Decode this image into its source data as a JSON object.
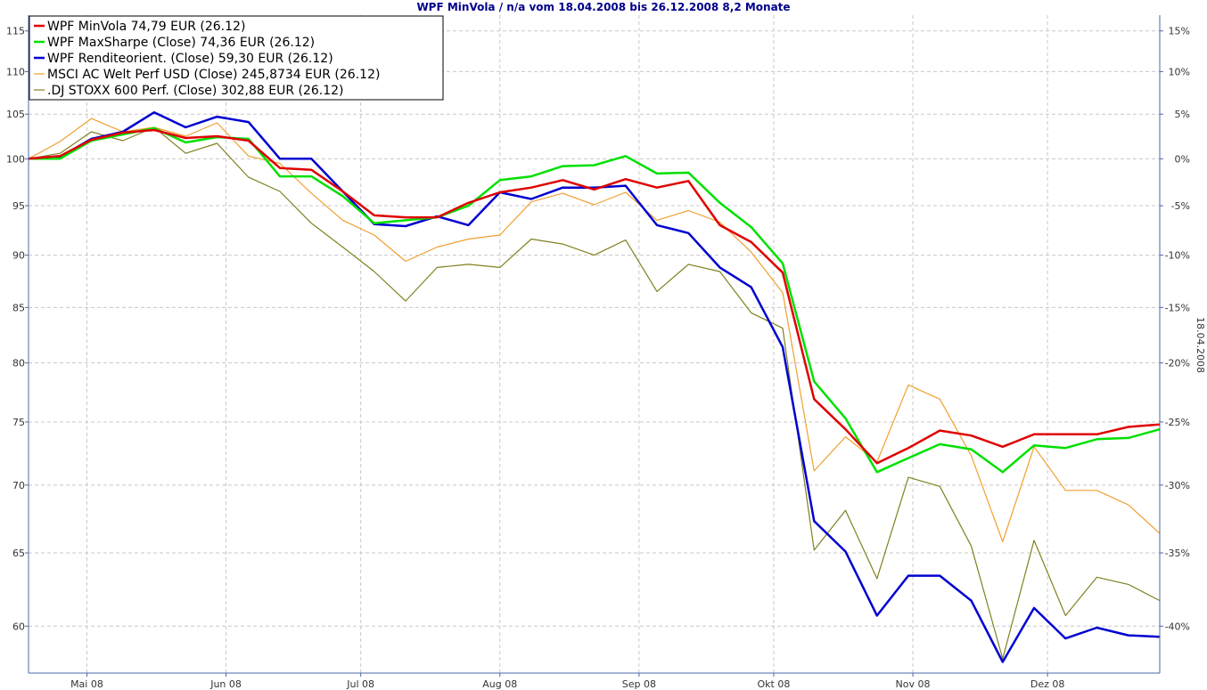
{
  "chart_data": {
    "type": "line",
    "title": "WPF MinVola / n/a vom 18.04.2008 bis 26.12.2008 8,2 Monate",
    "right_axis_label": "18.04.2008",
    "y_left": {
      "min": 57,
      "max": 117,
      "scale": "log",
      "ticks": [
        60,
        65,
        70,
        75,
        80,
        85,
        90,
        95,
        100,
        105,
        110,
        115
      ]
    },
    "y_right": {
      "base": 100,
      "ticks": [
        "15%",
        "10%",
        "5%",
        "0%",
        "-5%",
        "-10%",
        "-15%",
        "-20%",
        "-25%",
        "-30%",
        "-35%",
        "-40%"
      ]
    },
    "x_axis": {
      "start": "2008-04-18",
      "end": "2008-12-26",
      "months": [
        {
          "label": "Mai 08",
          "date": "2008-05-01"
        },
        {
          "label": "Jun 08",
          "date": "2008-06-01"
        },
        {
          "label": "Jul 08",
          "date": "2008-07-01"
        },
        {
          "label": "Aug 08",
          "date": "2008-08-01"
        },
        {
          "label": "Sep 08",
          "date": "2008-09-01"
        },
        {
          "label": "Okt 08",
          "date": "2008-10-01"
        },
        {
          "label": "Nov 08",
          "date": "2008-11-01"
        },
        {
          "label": "Dez 08",
          "date": "2008-12-01"
        }
      ]
    },
    "x": [
      "2008-04-18",
      "2008-04-25",
      "2008-05-02",
      "2008-05-09",
      "2008-05-16",
      "2008-05-23",
      "2008-05-30",
      "2008-06-06",
      "2008-06-13",
      "2008-06-20",
      "2008-06-27",
      "2008-07-04",
      "2008-07-11",
      "2008-07-18",
      "2008-07-25",
      "2008-08-01",
      "2008-08-08",
      "2008-08-15",
      "2008-08-22",
      "2008-08-29",
      "2008-09-05",
      "2008-09-12",
      "2008-09-19",
      "2008-09-26",
      "2008-10-03",
      "2008-10-10",
      "2008-10-17",
      "2008-10-24",
      "2008-10-31",
      "2008-11-07",
      "2008-11-14",
      "2008-11-21",
      "2008-11-28",
      "2008-12-05",
      "2008-12-12",
      "2008-12-19",
      "2008-12-26"
    ],
    "grid": true,
    "legend_position": "top-left",
    "series": [
      {
        "name": "WPF MinVola 74,79 EUR (26.12)",
        "color": "#e00000",
        "width": 2.5,
        "values": [
          100,
          100.3,
          102.1,
          102.9,
          103.2,
          102.3,
          102.5,
          102.0,
          99.0,
          98.8,
          96.5,
          94.0,
          93.8,
          93.8,
          95.3,
          96.4,
          96.9,
          97.7,
          96.7,
          97.8,
          96.9,
          97.6,
          93.0,
          91.3,
          88.3,
          76.9,
          74.4,
          71.7,
          72.9,
          74.3,
          73.9,
          73.0,
          74.0,
          74.0,
          74.0,
          74.6,
          74.8
        ]
      },
      {
        "name": "WPF MaxSharpe (Close) 74,36 EUR (26.12)",
        "color": "#00e000",
        "width": 2.5,
        "values": [
          100,
          100.0,
          102.0,
          102.7,
          103.4,
          101.8,
          102.4,
          102.2,
          98.1,
          98.1,
          96.0,
          93.2,
          93.5,
          93.8,
          95.0,
          97.7,
          98.1,
          99.2,
          99.3,
          100.3,
          98.4,
          98.5,
          95.3,
          92.8,
          89.2,
          78.4,
          75.3,
          71.0,
          72.1,
          73.2,
          72.8,
          71.0,
          73.1,
          72.9,
          73.6,
          73.7,
          74.4
        ]
      },
      {
        "name": "WPF Renditeorient. (Close) 59,30 EUR (26.12)",
        "color": "#0000d0",
        "width": 2.5,
        "values": [
          100,
          100.2,
          102.2,
          103.0,
          105.2,
          103.5,
          104.7,
          104.1,
          100.0,
          100.0,
          96.5,
          93.1,
          92.9,
          93.9,
          93.0,
          96.4,
          95.7,
          96.9,
          96.9,
          97.1,
          93.0,
          92.2,
          88.8,
          86.9,
          81.4,
          67.3,
          65.1,
          60.7,
          63.4,
          63.4,
          61.7,
          57.7,
          61.2,
          59.2,
          59.9,
          59.4,
          59.3
        ]
      },
      {
        "name": "MSCI AC Welt Perf USD (Close) 245,8734 EUR (26.12)",
        "color": "#f0a030",
        "width": 1.2,
        "values": [
          100,
          101.9,
          104.5,
          103.0,
          103.5,
          102.5,
          104.0,
          100.3,
          99.5,
          96.3,
          93.5,
          92.0,
          89.4,
          90.8,
          91.6,
          92.0,
          95.4,
          96.3,
          95.1,
          96.4,
          93.5,
          94.5,
          93.3,
          90.3,
          86.4,
          71.1,
          73.8,
          71.8,
          78.1,
          76.9,
          72.3,
          65.8,
          73.0,
          69.6,
          69.6,
          68.5,
          66.4
        ]
      },
      {
        "name": ".DJ STOXX 600 Perf. (Close) 302,88 EUR (26.12)",
        "color": "#808020",
        "width": 1.2,
        "values": [
          100,
          100.6,
          103.0,
          102.0,
          103.5,
          100.6,
          101.7,
          98.0,
          96.5,
          93.2,
          90.8,
          88.4,
          85.6,
          88.8,
          89.1,
          88.8,
          91.6,
          91.1,
          90.0,
          91.5,
          86.5,
          89.1,
          88.4,
          84.5,
          83.1,
          65.2,
          68.1,
          63.2,
          70.6,
          69.9,
          65.5,
          57.9,
          65.9,
          60.7,
          63.3,
          62.8,
          61.7
        ]
      }
    ]
  }
}
